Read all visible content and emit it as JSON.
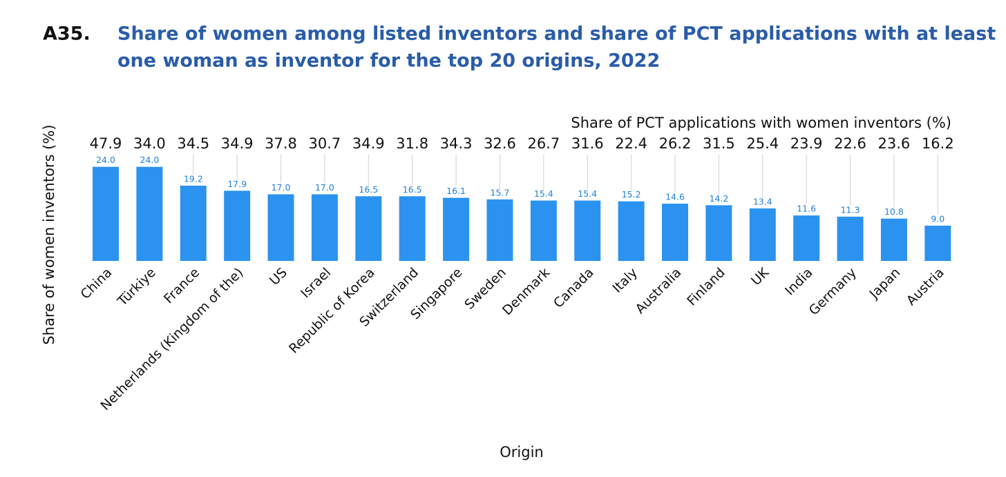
{
  "chart_data": {
    "type": "bar",
    "label": "A35.",
    "title": [
      "Share of women among listed inventors and share of PCT applications with at least",
      "one woman as inventor for the top 20 origins, 2022"
    ],
    "x_label": "Origin",
    "y_label": "Share of women inventors (%)",
    "categories": [
      "China",
      "Türkiye",
      "France",
      "Netherlands (Kingdom of the)",
      "US",
      "Israel",
      "Republic of Korea",
      "Switzerland",
      "Singapore",
      "Sweden",
      "Denmark",
      "Canada",
      "Italy",
      "Australia",
      "Finland",
      "UK",
      "India",
      "Germany",
      "Japan",
      "Austria"
    ],
    "values": [
      24.0,
      24.0,
      19.2,
      17.9,
      17.0,
      17.0,
      16.5,
      16.5,
      16.1,
      15.7,
      15.4,
      15.4,
      15.2,
      14.6,
      14.2,
      13.4,
      11.6,
      11.3,
      10.8,
      9.0
    ],
    "value_labels": [
      "24.0",
      "24.0",
      "19.2",
      "17.9",
      "17.0",
      "17.0",
      "16.5",
      "16.5",
      "16.1",
      "15.7",
      "15.4",
      "15.4",
      "15.2",
      "14.6",
      "14.2",
      "13.4",
      "11.6",
      "11.3",
      "10.8",
      "9.0"
    ],
    "color": "#2b93ef",
    "ylim": [
      0,
      25
    ],
    "top_row": {
      "title": "Share of PCT applications with women inventors (%)",
      "values": [
        47.9,
        34.0,
        34.5,
        34.9,
        37.8,
        30.7,
        34.9,
        31.8,
        34.3,
        32.6,
        26.7,
        31.6,
        22.4,
        26.2,
        31.5,
        25.4,
        23.9,
        22.6,
        23.6,
        16.2
      ],
      "value_labels": [
        "47.9",
        "34.0",
        "34.5",
        "34.9",
        "37.8",
        "30.7",
        "34.9",
        "31.8",
        "34.3",
        "32.6",
        "26.7",
        "31.6",
        "22.4",
        "26.2",
        "31.5",
        "25.4",
        "23.9",
        "22.6",
        "23.6",
        "16.2"
      ]
    }
  }
}
